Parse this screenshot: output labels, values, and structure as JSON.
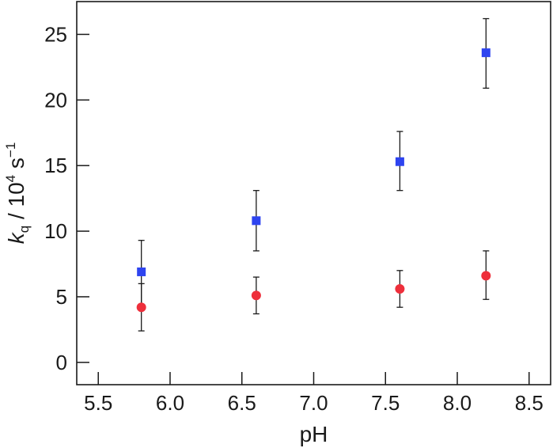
{
  "chart_data": {
    "type": "scatter",
    "title": "",
    "xlabel": "pH",
    "ylabel": {
      "main": "k",
      "sub": "q",
      "sep": " / 10",
      "exp": "4",
      "unit": " s",
      "unit_exp": "−1"
    },
    "xlim": [
      5.35,
      8.65
    ],
    "ylim": [
      -1.7,
      27.5
    ],
    "x_ticks": [
      5.5,
      6.0,
      6.5,
      7.0,
      7.5,
      8.0,
      8.5
    ],
    "x_tick_labels": [
      "5.5",
      "6.0",
      "6.5",
      "7.0",
      "7.5",
      "8.0",
      "8.5"
    ],
    "y_ticks": [
      0,
      5,
      10,
      15,
      20,
      25
    ],
    "y_tick_labels": [
      "0",
      "5",
      "10",
      "15",
      "20",
      "25"
    ],
    "grid": false,
    "legend": "none",
    "series": [
      {
        "marker": "square",
        "color": "#2e44f0",
        "points": [
          {
            "x": 5.8,
            "y": 6.9,
            "err_low": 4.4,
            "err_high": 9.3
          },
          {
            "x": 6.6,
            "y": 10.8,
            "err_low": 8.5,
            "err_high": 13.1
          },
          {
            "x": 7.6,
            "y": 15.3,
            "err_low": 13.1,
            "err_high": 17.6
          },
          {
            "x": 8.2,
            "y": 23.6,
            "err_low": 20.9,
            "err_high": 26.2
          }
        ]
      },
      {
        "marker": "circle",
        "color": "#ee2f3b",
        "points": [
          {
            "x": 5.8,
            "y": 4.2,
            "err_low": 2.4,
            "err_high": 6.0
          },
          {
            "x": 6.6,
            "y": 5.1,
            "err_low": 3.7,
            "err_high": 6.5
          },
          {
            "x": 7.6,
            "y": 5.6,
            "err_low": 4.2,
            "err_high": 7.0
          },
          {
            "x": 8.2,
            "y": 6.6,
            "err_low": 4.8,
            "err_high": 8.5
          }
        ]
      }
    ]
  }
}
